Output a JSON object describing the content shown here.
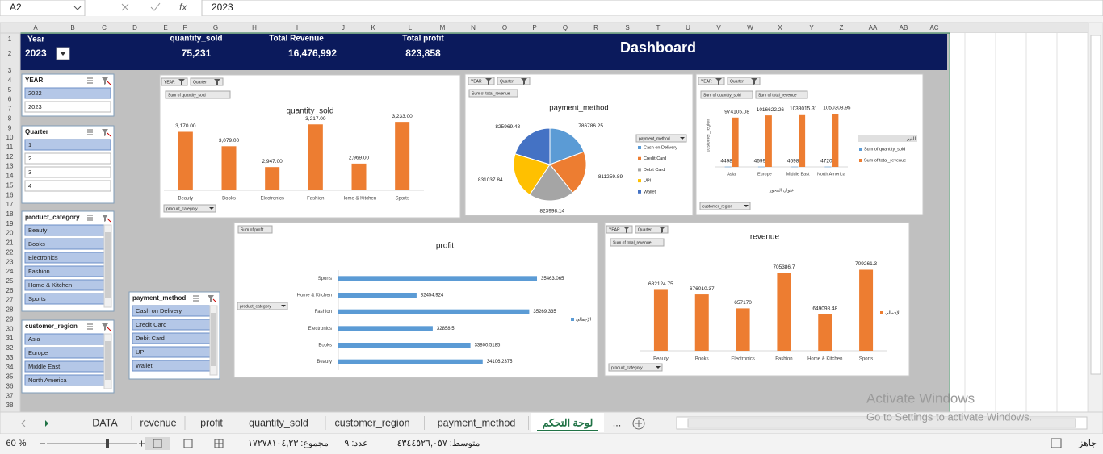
{
  "formula_bar": {
    "name_box": "A2",
    "formula": "2023"
  },
  "columns": [
    "A",
    "B",
    "C",
    "D",
    "E",
    "F",
    "G",
    "H",
    "I",
    "J",
    "K",
    "L",
    "M",
    "N",
    "O",
    "P",
    "Q",
    "R",
    "S",
    "T",
    "U",
    "V",
    "W",
    "X",
    "Y",
    "Z",
    "AA",
    "AB",
    "AC"
  ],
  "rows": [
    1,
    2,
    3,
    4,
    5,
    6,
    7,
    8,
    9,
    10,
    11,
    12,
    13,
    14,
    15,
    16,
    17,
    18,
    19,
    20,
    21,
    22,
    23,
    24,
    25,
    26,
    27,
    28,
    29,
    30,
    31,
    32,
    33,
    34,
    35,
    36,
    37,
    38
  ],
  "header": {
    "year_label": "Year",
    "year_value": "2023",
    "dashboard_title": "Dashboard",
    "kpis": [
      {
        "label": "quantity_sold",
        "value": "75,231"
      },
      {
        "label": "Total Revenue",
        "value": "16,476,992"
      },
      {
        "label": "Total profit",
        "value": "823,858"
      }
    ]
  },
  "slicers": [
    {
      "title": "YEAR",
      "items": [
        {
          "label": "2022",
          "selected": true
        },
        {
          "label": "2023",
          "selected": false
        }
      ]
    },
    {
      "title": "Quarter",
      "items": [
        {
          "label": "1",
          "selected": true
        },
        {
          "label": "2",
          "selected": false
        },
        {
          "label": "3",
          "selected": false
        },
        {
          "label": "4",
          "selected": false
        }
      ]
    },
    {
      "title": "product_category",
      "items": [
        {
          "label": "Beauty",
          "selected": true
        },
        {
          "label": "Books",
          "selected": true
        },
        {
          "label": "Electronics",
          "selected": true
        },
        {
          "label": "Fashion",
          "selected": true
        },
        {
          "label": "Home & Kitchen",
          "selected": true
        },
        {
          "label": "Sports",
          "selected": true
        }
      ]
    },
    {
      "title": "customer_region",
      "items": [
        {
          "label": "Asia",
          "selected": true
        },
        {
          "label": "Europe",
          "selected": true
        },
        {
          "label": "Middle East",
          "selected": true
        },
        {
          "label": "North America",
          "selected": true
        }
      ]
    },
    {
      "title": "payment_method",
      "items": [
        {
          "label": "Cash on Delivery",
          "selected": true
        },
        {
          "label": "Credit Card",
          "selected": true
        },
        {
          "label": "Debit Card",
          "selected": true
        },
        {
          "label": "UPI",
          "selected": true
        },
        {
          "label": "Wallet",
          "selected": true
        }
      ]
    }
  ],
  "chart_data": [
    {
      "type": "bar",
      "title": "quantity_sold",
      "filter_buttons": [
        "YEAR",
        "Quarter"
      ],
      "value_button": "Sum of quantity_sold",
      "axis_button": "product_category",
      "categories": [
        "Beauty",
        "Books",
        "Electronics",
        "Fashion",
        "Home & Kitchen",
        "Sports"
      ],
      "values": [
        3170,
        3079,
        2947,
        3217,
        2969,
        3233
      ],
      "value_labels": [
        "3,170.00",
        "3,079.00",
        "2,947.00",
        "3,217.00",
        "2,969.00",
        "3,233.00"
      ],
      "color": "#ed7d31",
      "ylim": [
        2800,
        3300
      ]
    },
    {
      "type": "pie",
      "title": "payment_method",
      "filter_buttons": [
        "YEAR",
        "Quarter"
      ],
      "value_button": "Sum of total_revenue",
      "legend_button": "payment_method",
      "categories": [
        "Cash on Delivery",
        "Credit Card",
        "Debit Card",
        "UPI",
        "Wallet"
      ],
      "values": [
        786786.25,
        811259.89,
        823998.14,
        831037.84,
        825969.48
      ],
      "colors": [
        "#5b9bd5",
        "#ed7d31",
        "#a5a5a5",
        "#ffc000",
        "#4472c4"
      ]
    },
    {
      "type": "grouped_bar",
      "filter_buttons": [
        "YEAR",
        "Quarter"
      ],
      "value_buttons": [
        "Sum of quantity_sold",
        "Sum of total_revenue"
      ],
      "axis_button": "customer_region",
      "y_axis_label": "customer_region",
      "x_axis_label": "عنوان المحور",
      "legend_title": "القيم",
      "categories": [
        "Asia",
        "Europe",
        "Middle East",
        "North America"
      ],
      "series": [
        {
          "name": "Sum of quantity_sold",
          "color": "#5b9bd5",
          "values": [
            4498,
            4699,
            4698,
            4720
          ]
        },
        {
          "name": "Sum of total_revenue",
          "color": "#ed7d31",
          "values": [
            974105.08,
            1016622.26,
            1038015.31,
            1050308.95
          ]
        }
      ],
      "ylim": [
        0,
        1200000
      ]
    },
    {
      "type": "hbar",
      "title": "profit",
      "value_button": "Sum of profit",
      "axis_button": "product_category",
      "categories": [
        "Beauty",
        "Books",
        "Electronics",
        "Fashion",
        "Home & Kitchen",
        "Sports"
      ],
      "series": [
        {
          "name": "الإجمالي",
          "color": "#5b9bd5",
          "values": [
            34106.2375,
            33800.5185,
            32858.5,
            35269.335,
            32454.924,
            35463.065
          ]
        }
      ],
      "xlim": [
        30500,
        36000
      ]
    },
    {
      "type": "bar",
      "title": "revenue",
      "filter_buttons": [
        "YEAR",
        "Quarter"
      ],
      "value_button": "Sum of total_revenue",
      "axis_button": "product_category",
      "categories": [
        "Beauty",
        "Books",
        "Electronics",
        "Fashion",
        "Home & Kitchen",
        "Sports"
      ],
      "series": [
        {
          "name": "الإجمالي",
          "color": "#ed7d31",
          "values": [
            682124.75,
            676010.37,
            657170,
            705386.7,
            649098.48,
            709261.3
          ]
        }
      ],
      "ylim": [
        600000,
        720000
      ]
    }
  ],
  "sheet_tabs": [
    "DATA",
    "revenue",
    "profit",
    "quantity_sold",
    "customer_region",
    "payment_method",
    "لوحة التحكم",
    "..."
  ],
  "active_tab": 6,
  "status_bar": {
    "zoom": "60 %",
    "sum": "مجموع: ١٧٢٧٨١٠٤,٢٣",
    "count": "عدد: ٩",
    "average": "متوسط: ٤٣٤٤٥٢٦,٠٥٧",
    "ready": "جاهز"
  },
  "watermark": {
    "line1": "Activate Windows",
    "line2": "Go to Settings to activate Windows."
  }
}
